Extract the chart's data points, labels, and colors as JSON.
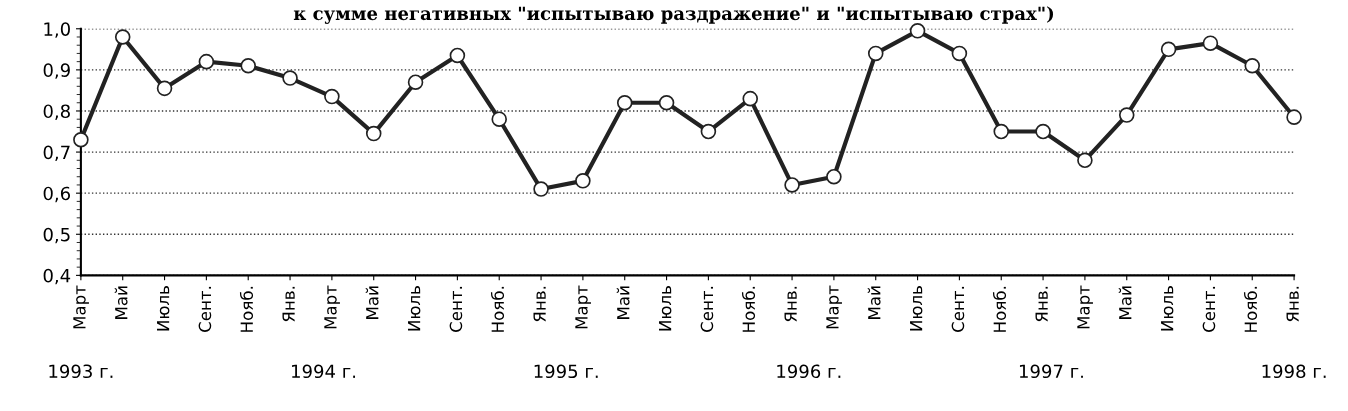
{
  "chart_data": {
    "type": "line",
    "title": "к сумме негативных \"испытываю раздражение\" и \"испытываю страх\")",
    "categories": [
      "Март",
      "Май",
      "Июль",
      "Сент.",
      "Нояб.",
      "Янв.",
      "Март",
      "Май",
      "Июль",
      "Сент.",
      "Нояб.",
      "Янв.",
      "Март",
      "Май",
      "Июль",
      "Сент.",
      "Нояб.",
      "Янв.",
      "Март",
      "Май",
      "Июль",
      "Сент.",
      "Нояб.",
      "Янв.",
      "Март",
      "Май",
      "Июль",
      "Сент.",
      "Нояб.",
      "Янв."
    ],
    "series": [
      {
        "color": "#222222",
        "values": [
          0.73,
          0.98,
          0.855,
          0.92,
          0.91,
          0.88,
          0.835,
          0.745,
          0.87,
          0.935,
          0.78,
          0.61,
          0.63,
          0.82,
          0.82,
          0.75,
          0.83,
          0.62,
          0.64,
          0.94,
          0.995,
          0.94,
          0.75,
          0.75,
          0.68,
          0.79,
          0.95,
          0.965,
          0.91,
          0.785
        ]
      }
    ],
    "annotations": [
      "1993 г.",
      "1994 г.",
      "1995 г.",
      "1996 г.",
      "1997 г.",
      "1998 г."
    ],
    "ylim": [
      0.4,
      1.0
    ],
    "yticks": [
      {
        "value": 0.4,
        "label": "0,4"
      },
      {
        "value": 0.5,
        "label": "0,5"
      },
      {
        "value": 0.6,
        "label": "0,6"
      },
      {
        "value": 0.7,
        "label": "0,7"
      },
      {
        "value": 0.8,
        "label": "0,8"
      },
      {
        "value": 0.9,
        "label": "0,9"
      },
      {
        "value": 1.0,
        "label": "1,0"
      }
    ],
    "grid": "y",
    "marker": "circle",
    "line_style": "solid",
    "legend": false
  }
}
